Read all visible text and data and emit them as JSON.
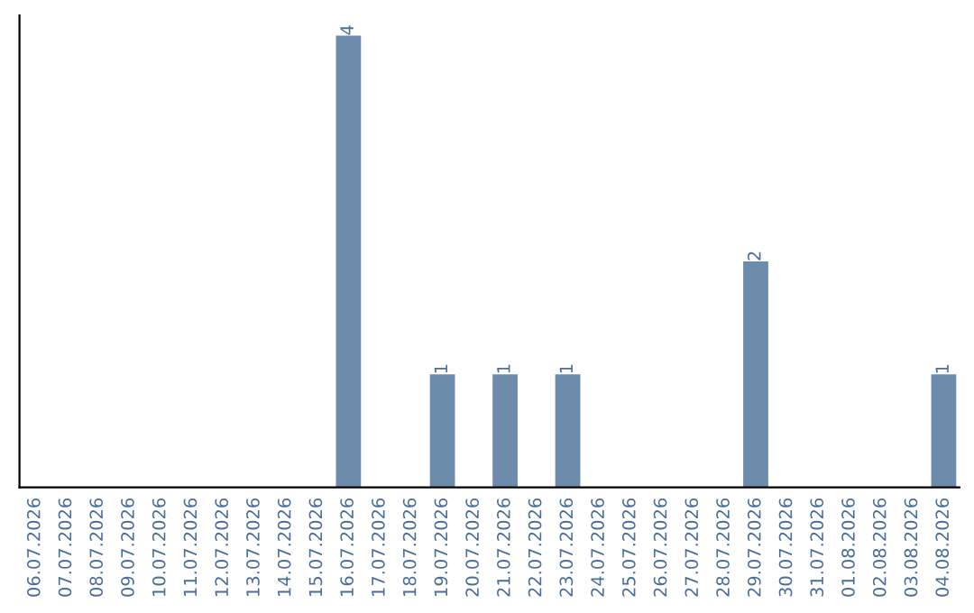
{
  "chart_data": {
    "type": "bar",
    "categories": [
      "06.07.2026",
      "07.07.2026",
      "08.07.2026",
      "09.07.2026",
      "10.07.2026",
      "11.07.2026",
      "12.07.2026",
      "13.07.2026",
      "14.07.2026",
      "15.07.2026",
      "16.07.2026",
      "17.07.2026",
      "18.07.2026",
      "19.07.2026",
      "20.07.2026",
      "21.07.2026",
      "22.07.2026",
      "23.07.2026",
      "24.07.2026",
      "25.07.2026",
      "26.07.2026",
      "27.07.2026",
      "28.07.2026",
      "29.07.2026",
      "30.07.2026",
      "31.07.2026",
      "01.08.2026",
      "02.08.2026",
      "03.08.2026",
      "04.08.2026"
    ],
    "values": [
      0,
      0,
      0,
      0,
      0,
      0,
      0,
      0,
      0,
      0,
      4,
      0,
      0,
      1,
      0,
      1,
      0,
      1,
      0,
      0,
      0,
      0,
      0,
      2,
      0,
      0,
      0,
      0,
      0,
      1
    ],
    "value_labels": [
      null,
      null,
      null,
      null,
      null,
      null,
      null,
      null,
      null,
      null,
      "4",
      null,
      null,
      "1",
      null,
      "1",
      null,
      "1",
      null,
      null,
      null,
      null,
      null,
      "2",
      null,
      null,
      null,
      null,
      null,
      "1"
    ],
    "color": "#6d8cab",
    "tick_labels": "x",
    "grid": false
  }
}
